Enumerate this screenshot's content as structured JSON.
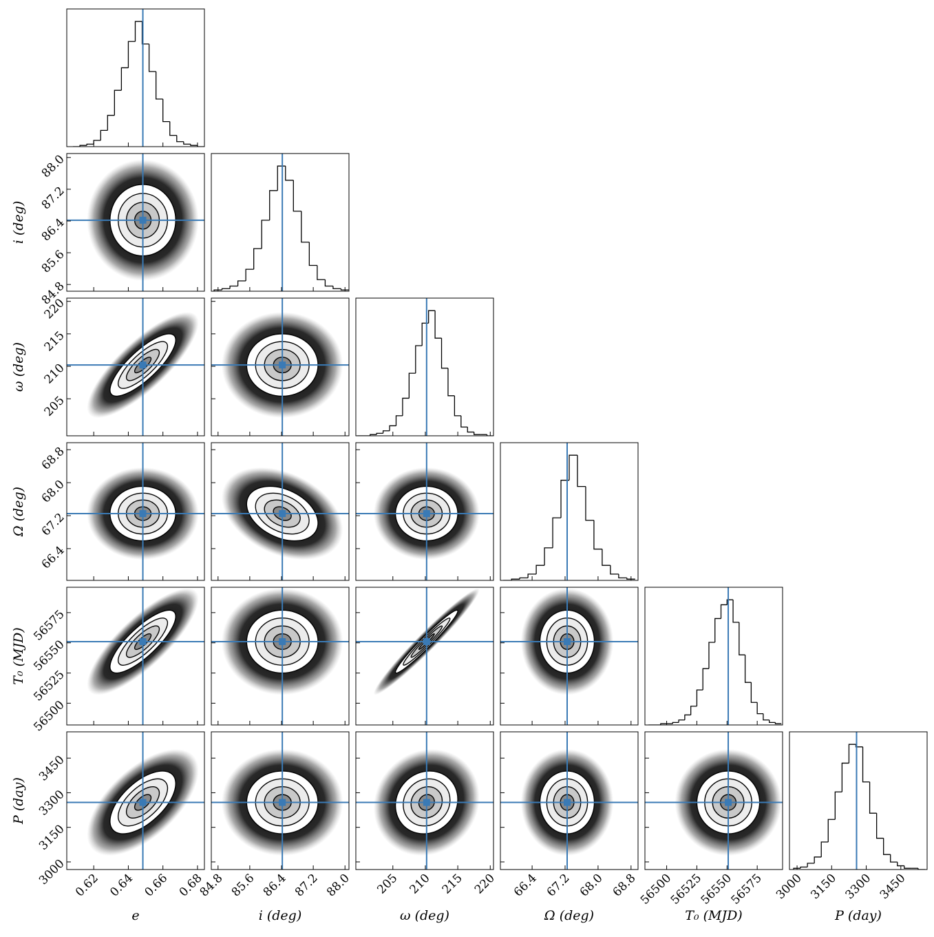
{
  "chart_data": {
    "type": "corner",
    "truth_color": "#3a7ab5",
    "params": [
      {
        "label": "e",
        "lim": [
          0.6044,
          0.684
        ],
        "ticks": [
          0.62,
          0.64,
          0.66,
          0.68
        ],
        "truth": 0.6484,
        "sigma": 0.0095,
        "bins": [
          0.608,
          0.612,
          0.616,
          0.62,
          0.624,
          0.628,
          0.632,
          0.636,
          0.64,
          0.644,
          0.648,
          0.652,
          0.656,
          0.66,
          0.664,
          0.668,
          0.672,
          0.676,
          0.68,
          0.684
        ],
        "counts": [
          0,
          1,
          2,
          5,
          13,
          25,
          45,
          63,
          84,
          100,
          82,
          60,
          38,
          20,
          9,
          4,
          2,
          1,
          0
        ]
      },
      {
        "label": "i (deg)",
        "lim": [
          84.63,
          88.1
        ],
        "ticks": [
          84.8,
          85.6,
          86.4,
          87.2,
          {
            "value": 88,
            "label": "88.0"
          }
        ],
        "truth": 86.42,
        "sigma": 0.45,
        "bins": [
          84.7,
          84.9,
          85.1,
          85.3,
          85.5,
          85.7,
          85.9,
          86.1,
          86.3,
          86.5,
          86.7,
          86.9,
          87.1,
          87.3,
          87.5,
          87.7,
          87.9,
          88.1
        ],
        "counts": [
          1,
          2,
          4,
          8,
          17,
          33,
          55,
          78,
          97,
          86,
          62,
          38,
          20,
          9,
          4,
          2,
          1
        ]
      },
      {
        "label": "ω (deg)",
        "lim": [
          199.3,
          220.5
        ],
        "ticks": [
          205,
          210,
          215,
          220
        ],
        "truth": 210.2,
        "sigma": 2.4,
        "bins": [
          199.5,
          200.5,
          201.5,
          202.5,
          203.5,
          204.5,
          205.5,
          206.5,
          207.5,
          208.5,
          209.5,
          210.5,
          211.5,
          212.5,
          213.5,
          214.5,
          215.5,
          216.5,
          217.5,
          218.5,
          219.5,
          220.5
        ],
        "counts": [
          0,
          0,
          1,
          2,
          4,
          8,
          16,
          30,
          50,
          72,
          90,
          100,
          78,
          54,
          32,
          16,
          7,
          3,
          1,
          1,
          0
        ]
      },
      {
        "label": "Ω (deg)",
        "lim": [
          65.63,
          68.97
        ],
        "ticks": [
          66.4,
          67.2,
          {
            "value": 68,
            "label": "68.0"
          },
          68.8
        ],
        "truth": 67.25,
        "sigma": 0.33,
        "bins": [
          65.7,
          65.9,
          66.1,
          66.3,
          66.5,
          66.7,
          66.9,
          67.1,
          67.3,
          67.5,
          67.7,
          67.9,
          68.1,
          68.3,
          68.5,
          68.7,
          68.9
        ],
        "counts": [
          0,
          1,
          2,
          5,
          12,
          26,
          50,
          80,
          100,
          75,
          48,
          25,
          12,
          5,
          2,
          1
        ]
      },
      {
        "label": "T₀ (MJD)",
        "lim": [
          56482,
          56596
        ],
        "ticks": [
          56500,
          56525,
          56550,
          56575
        ],
        "truth": 56551,
        "sigma": 13,
        "bins": [
          56485,
          56490,
          56495,
          56500,
          56505,
          56510,
          56515,
          56520,
          56525,
          56530,
          56535,
          56540,
          56545,
          56550,
          56555,
          56560,
          56565,
          56570,
          56575,
          56580,
          56585,
          56590,
          56595
        ],
        "counts": [
          0,
          0,
          1,
          1,
          2,
          4,
          8,
          15,
          28,
          45,
          66,
          85,
          96,
          100,
          82,
          56,
          34,
          18,
          9,
          4,
          2,
          1
        ]
      },
      {
        "label": "P (day)",
        "lim": [
          2967,
          3564
        ],
        "ticks": [
          3000,
          3150,
          3300,
          3450
        ],
        "truth": 3258,
        "sigma": 68,
        "bins": [
          2985,
          3015,
          3045,
          3075,
          3105,
          3135,
          3165,
          3195,
          3225,
          3255,
          3285,
          3315,
          3345,
          3375,
          3405,
          3435,
          3465,
          3495,
          3525,
          3555
        ],
        "counts": [
          1,
          2,
          5,
          10,
          22,
          40,
          62,
          85,
          100,
          98,
          70,
          45,
          25,
          12,
          6,
          3,
          1,
          1,
          0
        ]
      }
    ],
    "correlations": [
      [
        0
      ],
      [
        0.8,
        0
      ],
      [
        0,
        -0.35,
        0
      ],
      [
        0.8,
        0,
        0.97,
        0
      ],
      [
        0.6,
        0,
        0.1,
        0,
        0
      ]
    ]
  }
}
